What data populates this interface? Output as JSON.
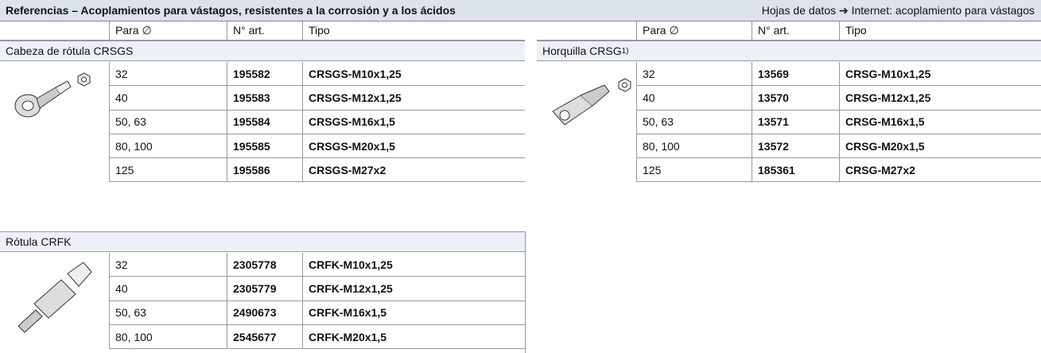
{
  "header": {
    "title": "Referencias – Acoplamientos para vástagos, resistentes a la corrosión y a los ácidos",
    "link": "Hojas de datos ➔ Internet: acoplamiento para vástagos"
  },
  "columns": [
    "Para ∅",
    "N° art.",
    "Tipo"
  ],
  "sections": [
    {
      "name": "Cabeza de rótula CRSGS",
      "rows": [
        [
          "32",
          "195582",
          "CRSGS-M10x1,25"
        ],
        [
          "40",
          "195583",
          "CRSGS-M12x1,25"
        ],
        [
          "50, 63",
          "195584",
          "CRSGS-M16x1,5"
        ],
        [
          "80, 100",
          "195585",
          "CRSGS-M20x1,5"
        ],
        [
          "125",
          "195586",
          "CRSGS-M27x2"
        ]
      ]
    },
    {
      "name": "Horquilla CRSG",
      "footnote": "1)",
      "rows": [
        [
          "32",
          "13569",
          "CRSG-M10x1,25"
        ],
        [
          "40",
          "13570",
          "CRSG-M12x1,25"
        ],
        [
          "50, 63",
          "13571",
          "CRSG-M16x1,5"
        ],
        [
          "80, 100",
          "13572",
          "CRSG-M20x1,5"
        ],
        [
          "125",
          "185361",
          "CRSG-M27x2"
        ]
      ]
    },
    {
      "name": "Rótula CRFK",
      "rows": [
        [
          "32",
          "2305778",
          "CRFK-M10x1,25"
        ],
        [
          "40",
          "2305779",
          "CRFK-M12x1,25"
        ],
        [
          "50, 63",
          "2490673",
          "CRFK-M16x1,5"
        ],
        [
          "80, 100",
          "2545677",
          "CRFK-M20x1,5"
        ]
      ]
    }
  ]
}
